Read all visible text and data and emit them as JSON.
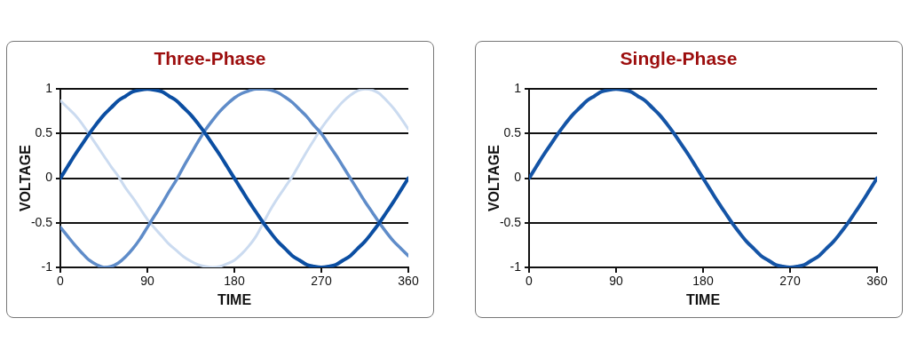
{
  "chart_data": [
    {
      "type": "line",
      "title": "Three-Phase",
      "xlabel": "TIME",
      "ylabel": "VOLTAGE",
      "x": [
        0,
        7.5,
        15,
        22.5,
        30,
        37.5,
        45,
        52.5,
        60,
        67.5,
        75,
        82.5,
        90,
        97.5,
        105,
        112.5,
        120,
        127.5,
        135,
        142.5,
        150,
        157.5,
        165,
        172.5,
        180,
        187.5,
        195,
        202.5,
        210,
        217.5,
        225,
        232.5,
        240,
        247.5,
        255,
        262.5,
        270,
        277.5,
        285,
        292.5,
        300,
        307.5,
        315,
        322.5,
        330,
        337.5,
        345,
        352.5,
        360
      ],
      "series": [
        {
          "color": "#0b4ea2",
          "values": [
            0,
            0.13,
            0.26,
            0.38,
            0.5,
            0.61,
            0.71,
            0.79,
            0.87,
            0.92,
            0.97,
            0.99,
            1,
            0.99,
            0.97,
            0.92,
            0.87,
            0.79,
            0.71,
            0.61,
            0.5,
            0.38,
            0.26,
            0.13,
            0,
            -0.13,
            -0.26,
            -0.38,
            -0.5,
            -0.61,
            -0.71,
            -0.79,
            -0.87,
            -0.92,
            -0.97,
            -0.99,
            -1,
            -0.99,
            -0.97,
            -0.92,
            -0.87,
            -0.79,
            -0.71,
            -0.61,
            -0.5,
            -0.38,
            -0.26,
            -0.13,
            0
          ]
        },
        {
          "color": "#5f8cc9",
          "values": [
            -0.55,
            -0.65,
            -0.75,
            -0.84,
            -0.92,
            -0.97,
            -1,
            -0.99,
            -0.95,
            -0.88,
            -0.79,
            -0.68,
            -0.55,
            -0.42,
            -0.29,
            -0.15,
            -0.02,
            0.13,
            0.27,
            0.41,
            0.54,
            0.65,
            0.75,
            0.83,
            0.9,
            0.95,
            0.98,
            1,
            1,
            0.99,
            0.96,
            0.91,
            0.85,
            0.77,
            0.69,
            0.59,
            0.5,
            0.38,
            0.26,
            0.13,
            0,
            -0.13,
            -0.26,
            -0.38,
            -0.5,
            -0.61,
            -0.71,
            -0.79,
            -0.87
          ]
        },
        {
          "color": "#cbdbf0",
          "values": [
            0.87,
            0.79,
            0.71,
            0.61,
            0.49,
            0.37,
            0.25,
            0.13,
            0.02,
            -0.11,
            -0.22,
            -0.34,
            -0.46,
            -0.56,
            -0.65,
            -0.74,
            -0.81,
            -0.88,
            -0.93,
            -0.97,
            -0.99,
            -1,
            -0.99,
            -0.96,
            -0.92,
            -0.85,
            -0.76,
            -0.65,
            -0.5,
            -0.35,
            -0.22,
            -0.1,
            0.02,
            0.16,
            0.3,
            0.43,
            0.56,
            0.67,
            0.77,
            0.86,
            0.93,
            0.98,
            1,
            0.99,
            0.95,
            0.87,
            0.78,
            0.67,
            0.55
          ]
        }
      ],
      "xlim": [
        0,
        360
      ],
      "ylim": [
        -1,
        1
      ],
      "xticks": [
        0,
        90,
        180,
        270,
        360
      ],
      "yticks": [
        -1,
        -0.5,
        0,
        0.5,
        1
      ],
      "grid": "y"
    },
    {
      "type": "line",
      "title": "Single-Phase",
      "xlabel": "TIME",
      "ylabel": "VOLTAGE",
      "x": [
        0,
        7.5,
        15,
        22.5,
        30,
        37.5,
        45,
        52.5,
        60,
        67.5,
        75,
        82.5,
        90,
        97.5,
        105,
        112.5,
        120,
        127.5,
        135,
        142.5,
        150,
        157.5,
        165,
        172.5,
        180,
        187.5,
        195,
        202.5,
        210,
        217.5,
        225,
        232.5,
        240,
        247.5,
        255,
        262.5,
        270,
        277.5,
        285,
        292.5,
        300,
        307.5,
        315,
        322.5,
        330,
        337.5,
        345,
        352.5,
        360
      ],
      "series": [
        {
          "color": "#1454a6",
          "values": [
            0,
            0.13,
            0.26,
            0.38,
            0.5,
            0.61,
            0.71,
            0.79,
            0.87,
            0.92,
            0.97,
            0.99,
            1,
            0.99,
            0.97,
            0.92,
            0.87,
            0.79,
            0.71,
            0.61,
            0.5,
            0.38,
            0.26,
            0.13,
            0,
            -0.13,
            -0.26,
            -0.38,
            -0.5,
            -0.61,
            -0.71,
            -0.79,
            -0.87,
            -0.92,
            -0.97,
            -0.99,
            -1,
            -0.99,
            -0.97,
            -0.92,
            -0.87,
            -0.79,
            -0.71,
            -0.61,
            -0.5,
            -0.38,
            -0.26,
            -0.13,
            0
          ]
        }
      ],
      "xlim": [
        0,
        360
      ],
      "ylim": [
        -1,
        1
      ],
      "xticks": [
        0,
        90,
        180,
        270,
        360
      ],
      "yticks": [
        -1,
        -0.5,
        0,
        0.5,
        1
      ],
      "grid": "y"
    }
  ]
}
